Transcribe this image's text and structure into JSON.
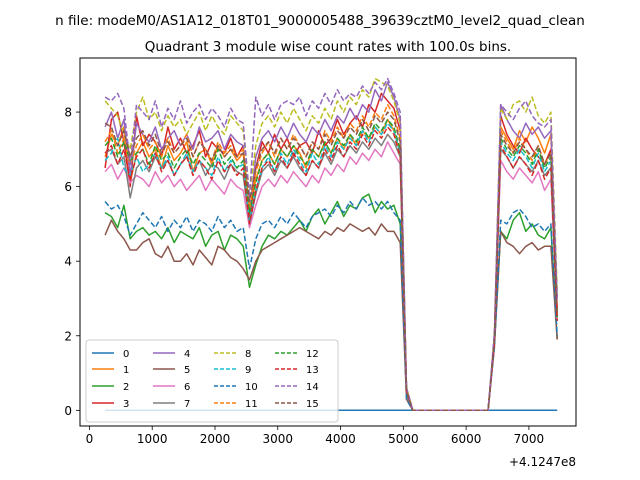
{
  "suptitle": "n file: modeM0/AS1A12_018T01_9000005488_39639cztM0_level2_quad_clean",
  "chart_data": {
    "type": "line",
    "title": "Quadrant 3 module wise count rates with 100.0s bins.",
    "xlabel": "",
    "ylabel": "",
    "x_offset_label": "+4.1247e8",
    "xlim": [
      -150,
      7750
    ],
    "ylim": [
      -0.42,
      9.45
    ],
    "xticks": [
      0,
      1000,
      2000,
      3000,
      4000,
      5000,
      6000,
      7000
    ],
    "yticks": [
      0,
      2,
      4,
      6,
      8
    ],
    "grid": false,
    "legend_placement": "lower-left",
    "x": [
      250,
      350,
      450,
      550,
      650,
      750,
      850,
      950,
      1050,
      1150,
      1250,
      1350,
      1450,
      1550,
      1650,
      1750,
      1850,
      1950,
      2050,
      2150,
      2250,
      2350,
      2450,
      2550,
      2650,
      2750,
      2850,
      2950,
      3050,
      3150,
      3250,
      3350,
      3450,
      3550,
      3650,
      3750,
      3850,
      3950,
      4050,
      4150,
      4250,
      4350,
      4450,
      4550,
      4650,
      4750,
      4850,
      4950,
      5050,
      5150,
      6350,
      6450,
      6550,
      6650,
      6750,
      6850,
      6950,
      7050,
      7150,
      7250,
      7350,
      7450
    ],
    "series": [
      {
        "name": "0",
        "color": "#1f77b4",
        "dash": "solid",
        "values": [
          0,
          0,
          0,
          0,
          0,
          0,
          0,
          0,
          0,
          0,
          0,
          0,
          0,
          0,
          0,
          0,
          0,
          0,
          0,
          0,
          0,
          0,
          0,
          0,
          0,
          0,
          0,
          0,
          0,
          0,
          0,
          0,
          0,
          0,
          0,
          0,
          0,
          0,
          0,
          0,
          0,
          0,
          0,
          0,
          0,
          0,
          0,
          0,
          0,
          0,
          0,
          0,
          0,
          0,
          0,
          0,
          0,
          0,
          0,
          0,
          0,
          0
        ]
      },
      {
        "name": "1",
        "color": "#ff7f0e",
        "dash": "solid",
        "values": [
          6.8,
          7.4,
          7.1,
          7.6,
          6.1,
          6.9,
          7.2,
          6.8,
          7.0,
          6.5,
          7.1,
          6.7,
          6.9,
          7.2,
          6.4,
          6.9,
          7.0,
          6.6,
          7.1,
          6.8,
          7.0,
          6.7,
          6.9,
          5.2,
          6.2,
          6.7,
          6.9,
          6.6,
          7.0,
          6.8,
          7.1,
          6.9,
          6.5,
          7.0,
          6.8,
          7.2,
          6.9,
          7.3,
          7.0,
          7.4,
          7.1,
          7.5,
          7.3,
          7.6,
          7.4,
          7.8,
          7.5,
          6.9,
          0.5,
          0.0,
          0.0,
          1.8,
          7.6,
          7.3,
          7.0,
          7.5,
          7.2,
          7.6,
          7.3,
          6.9,
          7.4,
          2.6
        ]
      },
      {
        "name": "2",
        "color": "#2ca02c",
        "dash": "solid",
        "values": [
          5.3,
          5.2,
          4.9,
          5.5,
          4.6,
          4.8,
          4.9,
          4.7,
          4.8,
          4.6,
          4.9,
          4.5,
          4.8,
          4.7,
          4.6,
          4.9,
          4.4,
          4.7,
          4.8,
          4.3,
          4.7,
          4.6,
          4.4,
          3.3,
          3.9,
          4.4,
          4.7,
          4.6,
          4.8,
          4.7,
          4.9,
          5.1,
          4.8,
          5.2,
          5.4,
          5.0,
          5.3,
          5.6,
          5.2,
          5.5,
          5.4,
          5.7,
          5.8,
          5.3,
          5.6,
          5.4,
          5.5,
          5.0,
          0.4,
          0.0,
          0.0,
          1.8,
          4.8,
          4.6,
          5.1,
          5.3,
          4.8,
          5.0,
          4.7,
          4.6,
          4.9,
          1.9
        ]
      },
      {
        "name": "3",
        "color": "#d62728",
        "dash": "solid",
        "values": [
          6.5,
          7.8,
          8.0,
          7.2,
          6.0,
          7.9,
          7.1,
          7.4,
          7.2,
          6.8,
          7.6,
          7.0,
          7.3,
          6.9,
          7.1,
          7.5,
          6.8,
          7.2,
          7.0,
          6.9,
          7.3,
          6.8,
          7.1,
          5.1,
          6.5,
          7.2,
          6.9,
          7.4,
          7.0,
          7.3,
          6.8,
          7.1,
          7.2,
          6.9,
          7.5,
          7.1,
          7.3,
          7.8,
          7.4,
          7.7,
          7.9,
          7.6,
          8.2,
          8.0,
          8.5,
          8.3,
          8.1,
          7.5,
          0.6,
          0.0,
          0.0,
          1.9,
          7.9,
          7.4,
          7.1,
          6.9,
          7.3,
          7.0,
          6.8,
          6.6,
          7.0,
          2.7
        ]
      },
      {
        "name": "4",
        "color": "#9467bd",
        "dash": "solid",
        "values": [
          7.6,
          8.0,
          7.3,
          7.8,
          6.3,
          7.7,
          7.4,
          7.2,
          7.6,
          7.0,
          7.3,
          7.5,
          7.1,
          7.4,
          7.0,
          7.6,
          7.2,
          7.3,
          7.5,
          7.0,
          7.4,
          7.2,
          7.1,
          5.3,
          6.8,
          7.3,
          7.5,
          7.2,
          7.6,
          7.3,
          7.7,
          7.4,
          7.2,
          7.6,
          7.4,
          7.8,
          7.5,
          7.9,
          7.7,
          8.1,
          7.8,
          8.2,
          8.0,
          8.6,
          8.3,
          8.8,
          8.4,
          7.8,
          0.5,
          0.0,
          0.0,
          1.9,
          8.2,
          7.8,
          7.5,
          7.3,
          7.7,
          7.4,
          7.6,
          7.3,
          7.5,
          3.0
        ]
      },
      {
        "name": "5",
        "color": "#8c564b",
        "dash": "solid",
        "values": [
          4.7,
          5.1,
          4.8,
          4.6,
          4.3,
          4.3,
          4.5,
          4.6,
          4.2,
          4.1,
          4.4,
          4.0,
          4.0,
          4.2,
          3.9,
          4.3,
          4.1,
          3.9,
          4.4,
          4.3,
          4.1,
          4.0,
          3.8,
          3.5,
          4.0,
          4.3,
          4.4,
          4.5,
          4.6,
          4.7,
          4.8,
          4.9,
          4.8,
          4.7,
          4.6,
          4.8,
          4.7,
          4.9,
          4.8,
          5.0,
          4.9,
          4.8,
          4.9,
          4.7,
          5.0,
          4.8,
          4.8,
          4.5,
          0.3,
          0.0,
          0.0,
          1.7,
          4.8,
          4.5,
          4.4,
          4.2,
          4.4,
          4.5,
          4.3,
          4.4,
          4.4,
          1.9
        ]
      },
      {
        "name": "6",
        "color": "#e377c2",
        "dash": "solid",
        "values": [
          6.4,
          6.6,
          6.2,
          6.5,
          6.1,
          6.3,
          6.2,
          6.0,
          6.4,
          6.1,
          6.3,
          6.0,
          6.2,
          5.9,
          6.1,
          6.3,
          5.9,
          6.2,
          6.0,
          5.8,
          6.2,
          6.0,
          5.9,
          4.9,
          5.5,
          6.0,
          6.2,
          6.0,
          6.3,
          6.1,
          6.4,
          6.2,
          6.0,
          6.3,
          6.1,
          6.5,
          6.3,
          6.6,
          6.4,
          6.8,
          6.6,
          6.9,
          6.7,
          7.0,
          6.8,
          7.2,
          6.9,
          6.6,
          0.4,
          0.0,
          0.0,
          1.8,
          6.7,
          6.4,
          6.2,
          6.5,
          6.3,
          6.1,
          6.4,
          5.9,
          6.2,
          2.4
        ]
      },
      {
        "name": "7",
        "color": "#7f7f7f",
        "dash": "solid",
        "values": [
          6.9,
          7.0,
          6.6,
          6.8,
          5.7,
          6.5,
          6.7,
          6.4,
          6.8,
          6.5,
          6.7,
          6.3,
          6.6,
          6.8,
          6.4,
          6.7,
          6.3,
          6.6,
          6.5,
          6.2,
          6.6,
          6.4,
          6.3,
          5.0,
          5.8,
          6.4,
          6.6,
          6.3,
          6.7,
          6.5,
          6.8,
          6.5,
          6.3,
          6.7,
          6.5,
          6.9,
          6.6,
          7.0,
          6.8,
          7.1,
          6.9,
          7.2,
          7.0,
          7.3,
          7.1,
          7.4,
          7.2,
          6.8,
          0.4,
          0.0,
          0.0,
          1.8,
          7.0,
          6.8,
          6.5,
          6.8,
          6.6,
          6.4,
          6.7,
          6.3,
          6.5,
          2.5
        ]
      },
      {
        "name": "8",
        "color": "#bcbd22",
        "dash": "dashed",
        "values": [
          8.3,
          8.1,
          7.9,
          7.4,
          7.0,
          8.0,
          8.4,
          7.8,
          8.0,
          7.5,
          7.9,
          7.6,
          7.8,
          7.4,
          7.7,
          8.0,
          7.5,
          7.9,
          7.6,
          7.4,
          7.9,
          7.7,
          7.5,
          5.8,
          7.1,
          7.7,
          7.9,
          7.6,
          8.0,
          7.7,
          8.1,
          7.8,
          7.5,
          7.9,
          7.7,
          8.1,
          7.8,
          8.3,
          8.0,
          8.4,
          8.2,
          8.6,
          8.4,
          8.9,
          8.8,
          8.7,
          8.3,
          7.7,
          0.6,
          0.0,
          0.0,
          2.0,
          8.1,
          7.8,
          8.2,
          8.3,
          8.0,
          8.4,
          7.9,
          7.7,
          8.0,
          3.2
        ]
      },
      {
        "name": "9",
        "color": "#17becf",
        "dash": "dashed",
        "values": [
          6.7,
          6.9,
          7.3,
          6.5,
          6.3,
          6.8,
          6.4,
          6.6,
          6.9,
          6.5,
          6.8,
          6.3,
          6.6,
          6.9,
          6.4,
          6.7,
          6.5,
          6.3,
          6.8,
          6.4,
          6.7,
          6.5,
          6.6,
          5.1,
          5.9,
          6.5,
          6.8,
          6.4,
          6.9,
          6.6,
          7.0,
          6.7,
          6.4,
          6.9,
          6.6,
          7.1,
          6.8,
          7.2,
          7.0,
          7.3,
          7.1,
          7.5,
          7.2,
          7.6,
          7.4,
          7.7,
          7.5,
          6.9,
          0.5,
          0.0,
          0.0,
          1.9,
          7.2,
          6.9,
          6.7,
          7.0,
          6.8,
          6.5,
          6.9,
          6.4,
          6.7,
          2.5
        ]
      },
      {
        "name": "10",
        "color": "#1f77b4",
        "dash": "dashed",
        "values": [
          5.6,
          5.4,
          5.5,
          5.2,
          4.7,
          5.0,
          5.3,
          5.1,
          4.9,
          5.2,
          4.8,
          5.1,
          4.9,
          5.2,
          4.8,
          5.1,
          5.0,
          4.8,
          5.2,
          4.9,
          5.1,
          4.8,
          4.9,
          3.8,
          4.6,
          5.0,
          5.1,
          4.9,
          5.2,
          5.0,
          5.3,
          5.1,
          4.9,
          5.2,
          5.3,
          5.4,
          5.2,
          5.5,
          5.3,
          5.6,
          5.4,
          5.7,
          5.5,
          5.6,
          5.4,
          5.6,
          5.3,
          5.1,
          0.3,
          0.0,
          0.0,
          1.7,
          5.1,
          5.0,
          5.3,
          5.4,
          5.2,
          4.9,
          5.0,
          4.8,
          5.0,
          2.0
        ]
      },
      {
        "name": "11",
        "color": "#ff7f0e",
        "dash": "dashed",
        "values": [
          7.2,
          7.5,
          6.9,
          7.3,
          6.6,
          7.1,
          7.4,
          7.0,
          7.2,
          6.8,
          7.3,
          6.9,
          7.1,
          7.4,
          6.8,
          7.2,
          7.0,
          6.7,
          7.2,
          6.9,
          7.1,
          6.8,
          7.0,
          5.4,
          6.4,
          6.9,
          7.2,
          6.8,
          7.3,
          7.0,
          7.4,
          7.1,
          6.8,
          7.2,
          7.0,
          7.5,
          7.2,
          7.6,
          7.3,
          7.7,
          7.5,
          7.9,
          7.6,
          8.0,
          7.8,
          8.2,
          7.9,
          7.3,
          0.5,
          0.0,
          0.0,
          1.9,
          7.5,
          7.2,
          6.9,
          7.3,
          7.0,
          6.7,
          7.1,
          6.6,
          6.9,
          2.6
        ]
      },
      {
        "name": "12",
        "color": "#2ca02c",
        "dash": "dashed",
        "values": [
          7.1,
          7.3,
          6.8,
          7.2,
          6.7,
          6.9,
          7.0,
          6.6,
          7.1,
          6.7,
          6.9,
          6.5,
          6.8,
          7.0,
          6.6,
          6.9,
          6.7,
          6.5,
          7.0,
          6.6,
          6.8,
          6.5,
          6.7,
          5.3,
          6.1,
          6.7,
          6.9,
          6.6,
          7.0,
          6.8,
          7.1,
          6.8,
          6.6,
          7.0,
          6.8,
          7.2,
          6.9,
          7.3,
          7.1,
          7.4,
          7.2,
          7.6,
          7.3,
          7.7,
          7.5,
          7.8,
          7.6,
          7.0,
          0.5,
          0.0,
          0.0,
          1.9,
          7.3,
          7.0,
          6.8,
          7.1,
          6.9,
          6.6,
          7.0,
          6.5,
          6.8,
          2.5
        ]
      },
      {
        "name": "13",
        "color": "#d62728",
        "dash": "dashed",
        "values": [
          6.9,
          7.1,
          6.6,
          7.0,
          6.2,
          6.8,
          7.0,
          6.5,
          6.9,
          6.4,
          6.7,
          6.3,
          6.6,
          6.8,
          6.3,
          6.7,
          6.5,
          6.2,
          6.7,
          6.4,
          6.6,
          6.3,
          6.5,
          5.0,
          5.9,
          6.5,
          6.7,
          6.4,
          6.8,
          6.5,
          6.9,
          6.6,
          6.3,
          6.7,
          6.5,
          7.0,
          6.7,
          7.1,
          6.8,
          7.2,
          7.0,
          7.4,
          7.1,
          7.5,
          7.3,
          7.6,
          7.4,
          6.8,
          0.5,
          0.0,
          0.0,
          1.8,
          7.1,
          6.8,
          6.5,
          6.8,
          6.6,
          6.3,
          6.7,
          6.2,
          6.5,
          2.4
        ]
      },
      {
        "name": "14",
        "color": "#9467bd",
        "dash": "dashed",
        "values": [
          8.4,
          8.3,
          8.5,
          8.1,
          6.6,
          8.2,
          8.0,
          7.8,
          8.3,
          7.6,
          8.1,
          7.8,
          8.3,
          7.7,
          8.0,
          8.2,
          7.8,
          8.1,
          7.9,
          7.6,
          8.1,
          7.8,
          7.7,
          5.7,
          8.4,
          7.9,
          8.2,
          7.8,
          8.2,
          8.3,
          8.2,
          8.4,
          7.9,
          8.3,
          8.1,
          8.5,
          8.2,
          8.6,
          8.3,
          8.5,
          8.4,
          8.7,
          8.5,
          8.8,
          8.6,
          8.9,
          8.5,
          8.0,
          0.6,
          0.0,
          0.0,
          2.1,
          8.2,
          8.0,
          7.8,
          8.1,
          8.3,
          7.9,
          7.7,
          7.6,
          7.8,
          3.0
        ]
      },
      {
        "name": "15",
        "color": "#8c564b",
        "dash": "dashed",
        "values": [
          7.7,
          7.6,
          7.1,
          7.5,
          6.8,
          7.3,
          7.5,
          7.1,
          7.4,
          6.9,
          7.2,
          6.9,
          7.1,
          7.3,
          6.8,
          7.2,
          7.0,
          6.7,
          7.1,
          6.8,
          7.0,
          6.8,
          6.9,
          5.6,
          6.5,
          7.0,
          7.2,
          6.9,
          7.3,
          7.0,
          7.3,
          7.1,
          6.8,
          7.2,
          7.0,
          7.4,
          7.1,
          7.5,
          7.3,
          7.6,
          7.4,
          7.8,
          7.5,
          7.9,
          7.7,
          8.0,
          7.8,
          7.2,
          0.5,
          0.0,
          0.0,
          1.9,
          7.4,
          7.1,
          6.9,
          7.2,
          7.0,
          6.8,
          7.1,
          6.6,
          6.9,
          2.6
        ]
      }
    ]
  }
}
